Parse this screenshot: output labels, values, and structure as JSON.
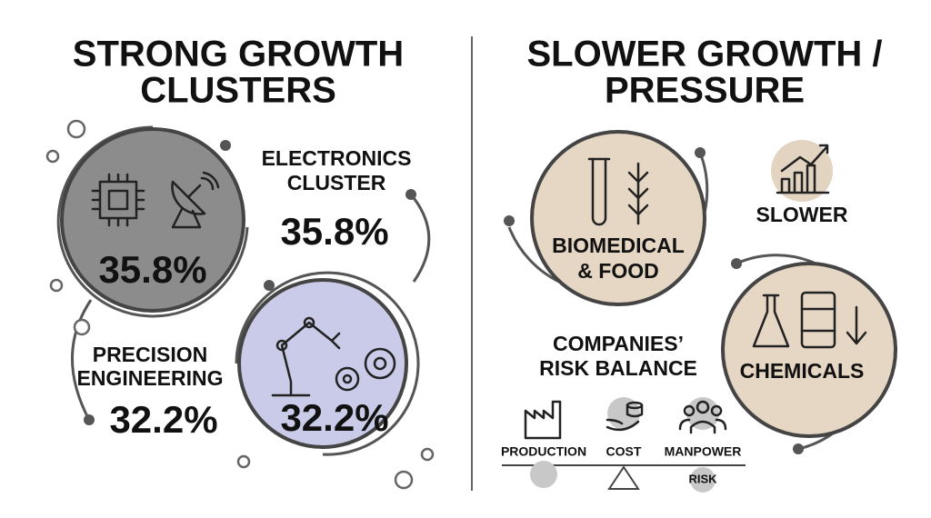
{
  "left": {
    "title_lines": [
      "STRONG GROWTH",
      "CLUSTERS"
    ],
    "electronics": {
      "circle_value": "35.8%",
      "label_lines": [
        "ELECTRONICS",
        "CLUSTER"
      ],
      "value": "35.8%"
    },
    "precision": {
      "circle_value": "32.2%",
      "label_lines": [
        "PRECISION",
        "ENGINEERING"
      ],
      "value": "32.2%"
    }
  },
  "right": {
    "title_lines": [
      "SLOWER GROWTH /",
      "PRESSURE"
    ],
    "biomedical": {
      "label_lines": [
        "BIOMEDICAL",
        "& FOOD"
      ]
    },
    "slower": "SLOWER",
    "chemicals": "CHEMICALS",
    "risk_balance": {
      "title_lines": [
        "COMPANIES’",
        "RISK BALANCE"
      ],
      "items": [
        "PRODUCTION",
        "COST",
        "MANPOWER"
      ],
      "pivot_label": "RISK"
    }
  }
}
